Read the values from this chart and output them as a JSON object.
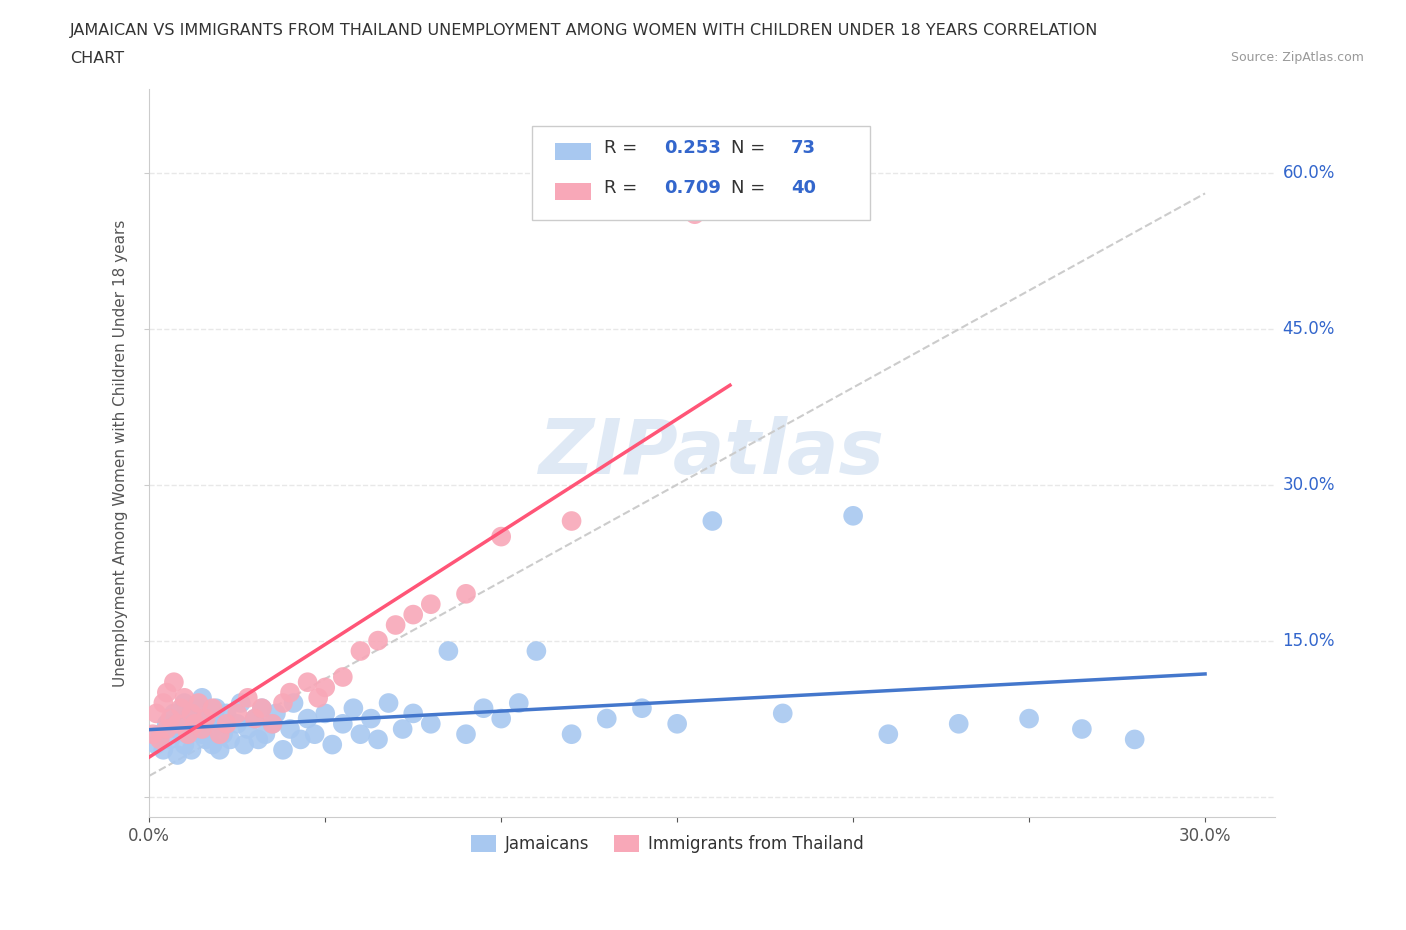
{
  "title_line1": "JAMAICAN VS IMMIGRANTS FROM THAILAND UNEMPLOYMENT AMONG WOMEN WITH CHILDREN UNDER 18 YEARS CORRELATION",
  "title_line2": "CHART",
  "source": "Source: ZipAtlas.com",
  "ylabel": "Unemployment Among Women with Children Under 18 years",
  "xlim": [
    0.0,
    0.32
  ],
  "ylim": [
    -0.02,
    0.68
  ],
  "xticks": [
    0.0,
    0.05,
    0.1,
    0.15,
    0.2,
    0.25,
    0.3
  ],
  "xtick_labels": [
    "0.0%",
    "",
    "",
    "",
    "",
    "",
    "30.0%"
  ],
  "ytick_positions": [
    0.0,
    0.15,
    0.3,
    0.45,
    0.6
  ],
  "ytick_labels": [
    "",
    "15.0%",
    "30.0%",
    "45.0%",
    "60.0%"
  ],
  "watermark": "ZIPatlas",
  "legend_R_jamaican": "0.253",
  "legend_N_jamaican": "73",
  "legend_R_thailand": "0.709",
  "legend_N_thailand": "40",
  "jamaican_color": "#a8c8f0",
  "thailand_color": "#f8a8b8",
  "jamaican_line_color": "#4477cc",
  "thailand_line_color": "#ff5577",
  "trendline_dashed_color": "#cccccc",
  "label_color": "#3366cc",
  "background_color": "#ffffff",
  "grid_color": "#e8e8e8",
  "jamaican_scatter_x": [
    0.002,
    0.003,
    0.004,
    0.005,
    0.006,
    0.007,
    0.008,
    0.008,
    0.009,
    0.01,
    0.01,
    0.011,
    0.012,
    0.012,
    0.013,
    0.014,
    0.015,
    0.015,
    0.016,
    0.017,
    0.018,
    0.018,
    0.019,
    0.02,
    0.02,
    0.021,
    0.022,
    0.023,
    0.025,
    0.026,
    0.027,
    0.028,
    0.03,
    0.031,
    0.032,
    0.033,
    0.035,
    0.036,
    0.038,
    0.04,
    0.041,
    0.043,
    0.045,
    0.047,
    0.05,
    0.052,
    0.055,
    0.058,
    0.06,
    0.063,
    0.065,
    0.068,
    0.072,
    0.075,
    0.08,
    0.085,
    0.09,
    0.095,
    0.1,
    0.105,
    0.11,
    0.12,
    0.13,
    0.14,
    0.15,
    0.16,
    0.18,
    0.2,
    0.21,
    0.23,
    0.25,
    0.265,
    0.28
  ],
  "jamaican_scatter_y": [
    0.05,
    0.06,
    0.045,
    0.07,
    0.055,
    0.08,
    0.065,
    0.04,
    0.075,
    0.05,
    0.09,
    0.06,
    0.08,
    0.045,
    0.07,
    0.085,
    0.06,
    0.095,
    0.055,
    0.075,
    0.05,
    0.065,
    0.085,
    0.07,
    0.045,
    0.06,
    0.08,
    0.055,
    0.07,
    0.09,
    0.05,
    0.065,
    0.075,
    0.055,
    0.085,
    0.06,
    0.07,
    0.08,
    0.045,
    0.065,
    0.09,
    0.055,
    0.075,
    0.06,
    0.08,
    0.05,
    0.07,
    0.085,
    0.06,
    0.075,
    0.055,
    0.09,
    0.065,
    0.08,
    0.07,
    0.14,
    0.06,
    0.085,
    0.075,
    0.09,
    0.14,
    0.06,
    0.075,
    0.085,
    0.07,
    0.265,
    0.08,
    0.27,
    0.06,
    0.07,
    0.075,
    0.065,
    0.055
  ],
  "thailand_scatter_x": [
    0.001,
    0.002,
    0.003,
    0.004,
    0.005,
    0.005,
    0.006,
    0.007,
    0.008,
    0.009,
    0.01,
    0.011,
    0.012,
    0.013,
    0.014,
    0.015,
    0.016,
    0.018,
    0.02,
    0.022,
    0.025,
    0.028,
    0.03,
    0.032,
    0.035,
    0.038,
    0.04,
    0.045,
    0.048,
    0.05,
    0.055,
    0.06,
    0.065,
    0.07,
    0.075,
    0.08,
    0.09,
    0.1,
    0.12,
    0.155
  ],
  "thailand_scatter_y": [
    0.06,
    0.08,
    0.055,
    0.09,
    0.065,
    0.1,
    0.075,
    0.11,
    0.07,
    0.085,
    0.095,
    0.06,
    0.08,
    0.07,
    0.09,
    0.065,
    0.075,
    0.085,
    0.06,
    0.07,
    0.08,
    0.095,
    0.075,
    0.085,
    0.07,
    0.09,
    0.1,
    0.11,
    0.095,
    0.105,
    0.115,
    0.14,
    0.15,
    0.165,
    0.175,
    0.185,
    0.195,
    0.25,
    0.265,
    0.56
  ]
}
